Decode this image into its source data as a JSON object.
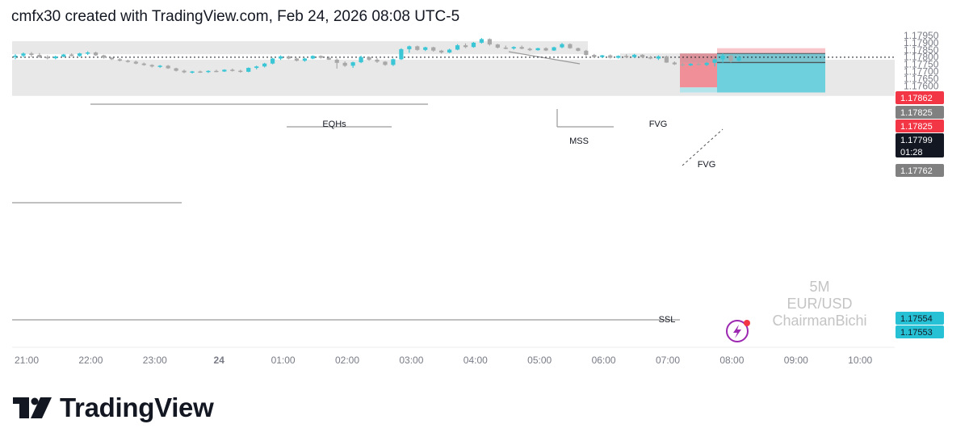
{
  "header": {
    "caption": "cmfx30 created with TradingView.com, Feb 24, 2026 08:08 UTC-5"
  },
  "footer": {
    "brand": "TradingView"
  },
  "watermark": {
    "timeframe": "5M",
    "symbol": "EUR/USD",
    "author": "ChairmanBichi"
  },
  "colors": {
    "bull": "#3bc6d6",
    "bear": "#a8a8a8",
    "zone": "#e8e8e8",
    "stop": "#f7c5ca",
    "stop_strong": "#f08f98",
    "target": "#6fd0dd",
    "target_light": "#b4e4eb",
    "red_label": "#f23645",
    "black_label": "#131722",
    "gray_label": "#808080",
    "cyan_label": "#27c1d6"
  },
  "chart_data": {
    "type": "candlestick",
    "x_axis_labels": [
      "21:00",
      "22:00",
      "23:00",
      "24",
      "01:00",
      "02:00",
      "03:00",
      "04:00",
      "05:00",
      "06:00",
      "07:00",
      "08:00",
      "09:00",
      "10:00"
    ],
    "y_axis_ticks": [
      "1.17950",
      "1.17900",
      "1.17850",
      "1.17800",
      "1.17750",
      "1.17700",
      "1.17650",
      "1.17600"
    ],
    "y_range": [
      1.1753,
      1.1797
    ],
    "candles": [
      [
        1.17802,
        1.1782,
        1.17785,
        1.1781
      ],
      [
        1.1781,
        1.17832,
        1.17798,
        1.17825
      ],
      [
        1.17825,
        1.17835,
        1.178,
        1.17815
      ],
      [
        1.17815,
        1.17828,
        1.17795,
        1.178
      ],
      [
        1.178,
        1.17812,
        1.17785,
        1.17792
      ],
      [
        1.17792,
        1.1781,
        1.17785,
        1.17804
      ],
      [
        1.17804,
        1.17822,
        1.17798,
        1.17818
      ],
      [
        1.17818,
        1.17826,
        1.17805,
        1.17808
      ],
      [
        1.17808,
        1.1783,
        1.17802,
        1.17826
      ],
      [
        1.17826,
        1.1784,
        1.17815,
        1.17832
      ],
      [
        1.17832,
        1.17838,
        1.17808,
        1.17812
      ],
      [
        1.17812,
        1.17816,
        1.1779,
        1.17795
      ],
      [
        1.17795,
        1.178,
        1.1778,
        1.17785
      ],
      [
        1.17785,
        1.17792,
        1.1777,
        1.17775
      ],
      [
        1.17775,
        1.17782,
        1.17762,
        1.17768
      ],
      [
        1.17768,
        1.17775,
        1.1775,
        1.17755
      ],
      [
        1.17755,
        1.17762,
        1.1774,
        1.17745
      ],
      [
        1.17745,
        1.1775,
        1.17728,
        1.17735
      ],
      [
        1.17735,
        1.17745,
        1.17725,
        1.1774
      ],
      [
        1.1774,
        1.17745,
        1.17718,
        1.17722
      ],
      [
        1.17722,
        1.17726,
        1.177,
        1.17705
      ],
      [
        1.17705,
        1.17712,
        1.17688,
        1.17694
      ],
      [
        1.17694,
        1.17704,
        1.17686,
        1.177
      ],
      [
        1.177,
        1.17706,
        1.1769,
        1.17696
      ],
      [
        1.17696,
        1.17708,
        1.1769,
        1.17704
      ],
      [
        1.17704,
        1.17712,
        1.17696,
        1.177
      ],
      [
        1.177,
        1.17715,
        1.17697,
        1.17712
      ],
      [
        1.17712,
        1.1772,
        1.177,
        1.17705
      ],
      [
        1.17705,
        1.17712,
        1.17692,
        1.17698
      ],
      [
        1.17698,
        1.17728,
        1.17695,
        1.17725
      ],
      [
        1.17725,
        1.1774,
        1.17715,
        1.17735
      ],
      [
        1.17735,
        1.1776,
        1.17728,
        1.17755
      ],
      [
        1.17755,
        1.17795,
        1.1775,
        1.1779
      ],
      [
        1.1779,
        1.17812,
        1.1778,
        1.17805
      ],
      [
        1.17805,
        1.1781,
        1.17785,
        1.1779
      ],
      [
        1.1779,
        1.17795,
        1.1777,
        1.17775
      ],
      [
        1.17775,
        1.17795,
        1.17768,
        1.1779
      ],
      [
        1.1779,
        1.17812,
        1.17786,
        1.17808
      ],
      [
        1.17808,
        1.17812,
        1.1779,
        1.17795
      ],
      [
        1.17795,
        1.17805,
        1.1778,
        1.17782
      ],
      [
        1.17782,
        1.1779,
        1.1772,
        1.1776
      ],
      [
        1.1776,
        1.1777,
        1.17732,
        1.1774
      ],
      [
        1.1774,
        1.17768,
        1.17725,
        1.17764
      ],
      [
        1.17764,
        1.1781,
        1.17758,
        1.178
      ],
      [
        1.178,
        1.17805,
        1.17775,
        1.17782
      ],
      [
        1.17782,
        1.17792,
        1.1776,
        1.17768
      ],
      [
        1.17768,
        1.17772,
        1.1774,
        1.17746
      ],
      [
        1.17746,
        1.1779,
        1.17738,
        1.17785
      ],
      [
        1.17785,
        1.17862,
        1.1778,
        1.17855
      ],
      [
        1.17855,
        1.1788,
        1.1783,
        1.17875
      ],
      [
        1.17875,
        1.1788,
        1.17845,
        1.1785
      ],
      [
        1.1785,
        1.17872,
        1.17842,
        1.17868
      ],
      [
        1.17868,
        1.17872,
        1.17838,
        1.17845
      ],
      [
        1.17845,
        1.1785,
        1.17825,
        1.17832
      ],
      [
        1.17832,
        1.17858,
        1.17828,
        1.17852
      ],
      [
        1.17852,
        1.1789,
        1.17848,
        1.17882
      ],
      [
        1.17882,
        1.17895,
        1.17862,
        1.1787
      ],
      [
        1.1787,
        1.17905,
        1.17865,
        1.179
      ],
      [
        1.179,
        1.17932,
        1.17894,
        1.17925
      ],
      [
        1.17925,
        1.1793,
        1.1788,
        1.17888
      ],
      [
        1.17888,
        1.17892,
        1.1786,
        1.17866
      ],
      [
        1.17866,
        1.1788,
        1.17855,
        1.1786
      ],
      [
        1.1786,
        1.17875,
        1.17852,
        1.1787
      ],
      [
        1.1787,
        1.1788,
        1.17855,
        1.17858
      ],
      [
        1.17858,
        1.17866,
        1.17842,
        1.17848
      ],
      [
        1.17848,
        1.17865,
        1.17845,
        1.17862
      ],
      [
        1.17862,
        1.17868,
        1.17842,
        1.17846
      ],
      [
        1.17846,
        1.17872,
        1.17843,
        1.17868
      ],
      [
        1.17868,
        1.17898,
        1.17862,
        1.1789
      ],
      [
        1.1789,
        1.17895,
        1.17858,
        1.17862
      ],
      [
        1.17862,
        1.17866,
        1.1784,
        1.17844
      ],
      [
        1.17844,
        1.1785,
        1.17808,
        1.17815
      ],
      [
        1.17815,
        1.17822,
        1.17795,
        1.178
      ],
      [
        1.178,
        1.17815,
        1.17795,
        1.17812
      ],
      [
        1.17812,
        1.17818,
        1.1779,
        1.17795
      ],
      [
        1.17795,
        1.17812,
        1.1779,
        1.17808
      ],
      [
        1.17808,
        1.1782,
        1.17796,
        1.178
      ],
      [
        1.178,
        1.17822,
        1.17794,
        1.17816
      ],
      [
        1.17816,
        1.1782,
        1.17794,
        1.17799
      ],
      [
        1.17799,
        1.17808,
        1.17785,
        1.1779
      ],
      [
        1.1779,
        1.17812,
        1.1778,
        1.17805
      ],
      [
        1.17805,
        1.1781,
        1.1776,
        1.17762
      ],
      [
        1.17762,
        1.1777,
        1.17745,
        1.1775
      ],
      [
        1.1775,
        1.1776,
        1.17735,
        1.17742
      ],
      [
        1.17742,
        1.17758,
        1.17738,
        1.17754
      ],
      [
        1.17754,
        1.17762,
        1.17742,
        1.17745
      ],
      [
        1.17745,
        1.17765,
        1.17738,
        1.1776
      ],
      [
        1.1776,
        1.1779,
        1.17735,
        1.17785
      ],
      [
        1.17785,
        1.17825,
        1.1776,
        1.1781
      ],
      [
        1.1781,
        1.17815,
        1.17762,
        1.17775
      ],
      [
        1.17775,
        1.17808,
        1.1777,
        1.17799
      ]
    ],
    "zones": [
      {
        "from": "21:00",
        "top": 1.1791,
        "bottom": 1.179
      },
      {
        "from": "21:00",
        "top": 1.17782,
        "bottom": 1.1753
      }
    ],
    "lines": [
      {
        "label": "EQHs",
        "price": 1.17843
      },
      {
        "label": "MSS",
        "price": 1.178
      },
      {
        "label": "SSL",
        "price": 1.17554
      }
    ],
    "annotations": [
      "FVG",
      "FVG",
      "EQHs",
      "MSS",
      "SSL"
    ],
    "position": {
      "side": "short",
      "stop": 1.17862,
      "entry": 1.17825,
      "target": 1.17554
    },
    "price_labels": [
      {
        "price": "1.17862",
        "color": "red"
      },
      {
        "price": "1.17825",
        "color": "gray"
      },
      {
        "price": "1.17825",
        "color": "red"
      },
      {
        "price": "1.17799",
        "countdown": "01:28",
        "color": "black"
      },
      {
        "price": "1.17762",
        "color": "gray"
      },
      {
        "price": "1.17554",
        "color": "cyan"
      },
      {
        "price": "1.17553",
        "color": "cyan"
      }
    ],
    "current_price": 1.17799
  }
}
